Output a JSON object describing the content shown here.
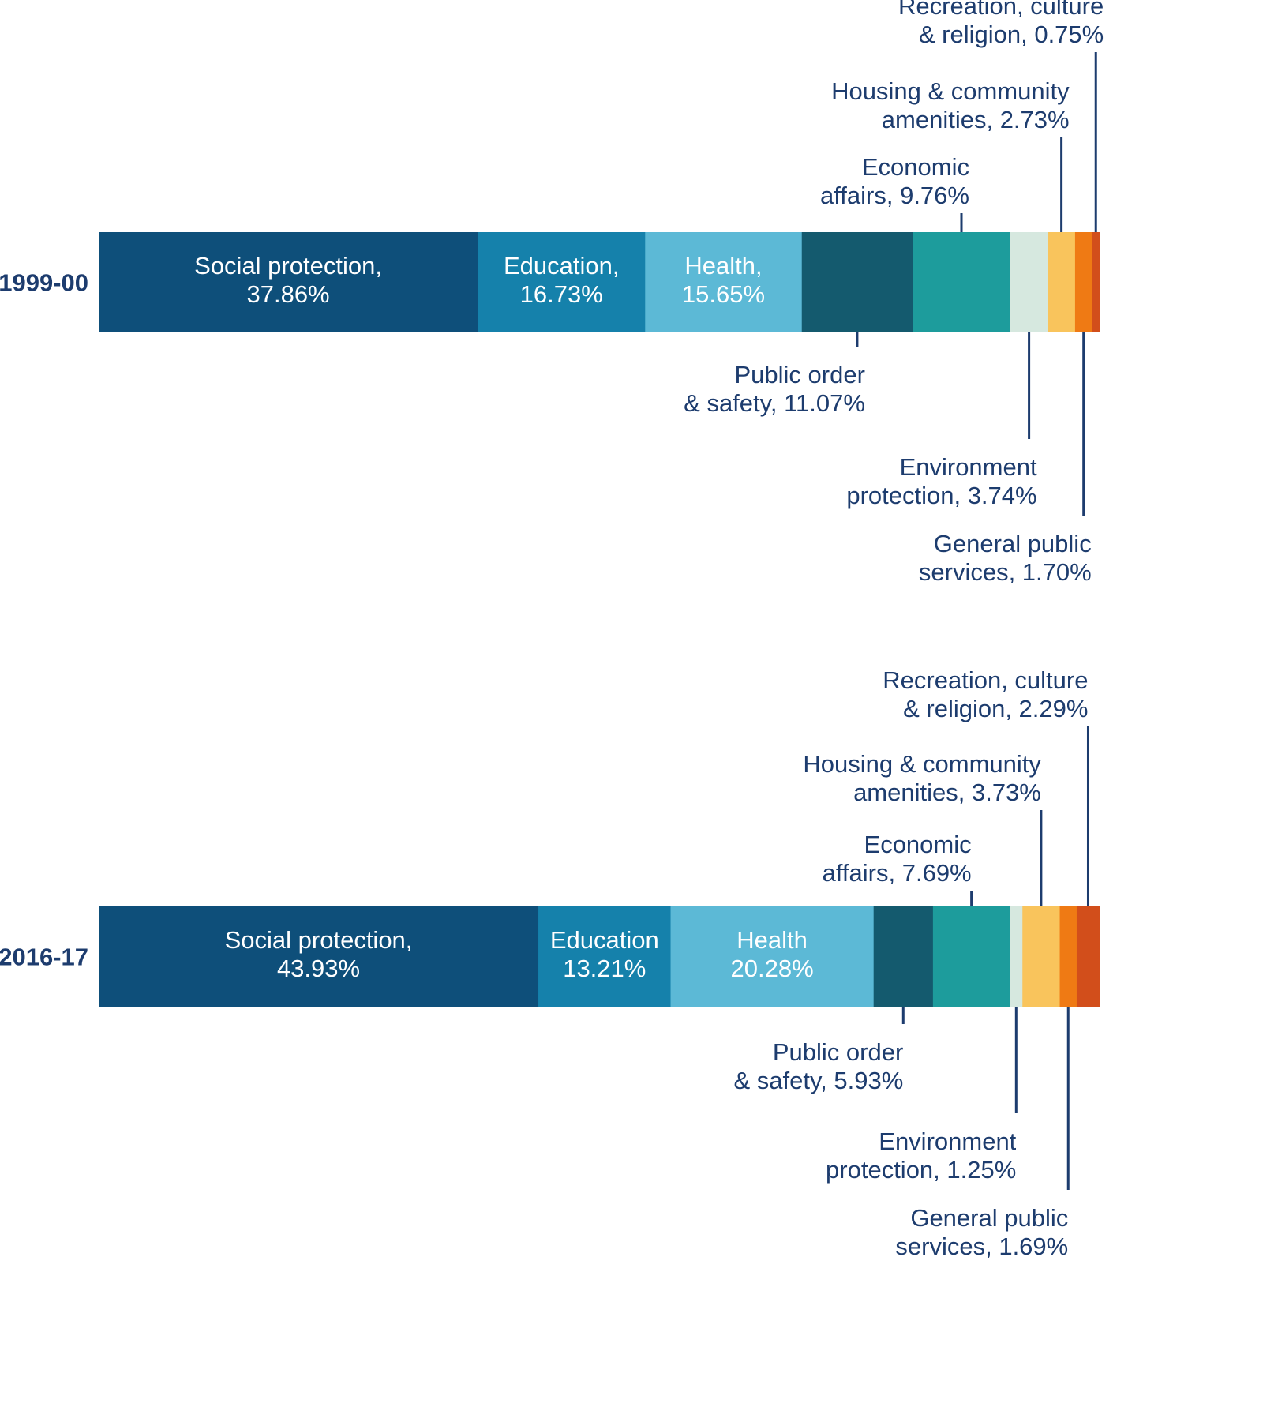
{
  "chart_data": {
    "type": "bar",
    "orientation": "horizontal-stacked-100",
    "bars": [
      {
        "label": "1999-00",
        "segments": [
          {
            "name": "Social protection",
            "value": 37.86,
            "text": [
              "Social protection,",
              "37.86%"
            ]
          },
          {
            "name": "Education",
            "value": 16.73,
            "text": [
              "Education,",
              "16.73%"
            ]
          },
          {
            "name": "Health",
            "value": 15.65,
            "text": [
              "Health,",
              "15.65%"
            ]
          },
          {
            "name": "Public order & safety",
            "value": 11.07,
            "text": [
              "Public order",
              "& safety, 11.07%"
            ]
          },
          {
            "name": "Economic affairs",
            "value": 9.76,
            "text": [
              "Economic",
              "affairs, 9.76%"
            ]
          },
          {
            "name": "Environment protection",
            "value": 3.74,
            "text": [
              "Environment",
              "protection, 3.74%"
            ]
          },
          {
            "name": "Housing & community amenities",
            "value": 2.73,
            "text": [
              "Housing & community",
              "amenities, 2.73%"
            ]
          },
          {
            "name": "General public services",
            "value": 1.7,
            "text": [
              "General public",
              "services, 1.70%"
            ]
          },
          {
            "name": "Recreation, culture & religion",
            "value": 0.75,
            "text": [
              "Recreation, culture",
              "& religion, 0.75%"
            ]
          }
        ]
      },
      {
        "label": "2016-17",
        "segments": [
          {
            "name": "Social protection",
            "value": 43.93,
            "text": [
              "Social protection,",
              "43.93%"
            ]
          },
          {
            "name": "Education",
            "value": 13.21,
            "text": [
              "Education",
              "13.21%"
            ]
          },
          {
            "name": "Health",
            "value": 20.28,
            "text": [
              "Health",
              "20.28%"
            ]
          },
          {
            "name": "Public order & safety",
            "value": 5.93,
            "text": [
              "Public order",
              "& safety, 5.93%"
            ]
          },
          {
            "name": "Economic affairs",
            "value": 7.69,
            "text": [
              "Economic",
              "affairs, 7.69%"
            ]
          },
          {
            "name": "Environment protection",
            "value": 1.25,
            "text": [
              "Environment",
              "protection, 1.25%"
            ]
          },
          {
            "name": "Housing & community amenities",
            "value": 3.73,
            "text": [
              "Housing & community",
              "amenities, 3.73%"
            ]
          },
          {
            "name": "General public services",
            "value": 1.69,
            "text": [
              "General public",
              "services, 1.69%"
            ]
          },
          {
            "name": "Recreation, culture & religion",
            "value": 2.29,
            "text": [
              "Recreation, culture",
              "& religion, 2.29%"
            ]
          }
        ]
      }
    ],
    "colors": [
      "#0e4f7a",
      "#1581ab",
      "#5cb9d6",
      "#145a6e",
      "#1d9c9c",
      "#d6e8df",
      "#f9c45c",
      "#ef7a14",
      "#d24e1b"
    ],
    "xlim": [
      0,
      100
    ],
    "legend": "none (direct labels)",
    "grid": false
  }
}
